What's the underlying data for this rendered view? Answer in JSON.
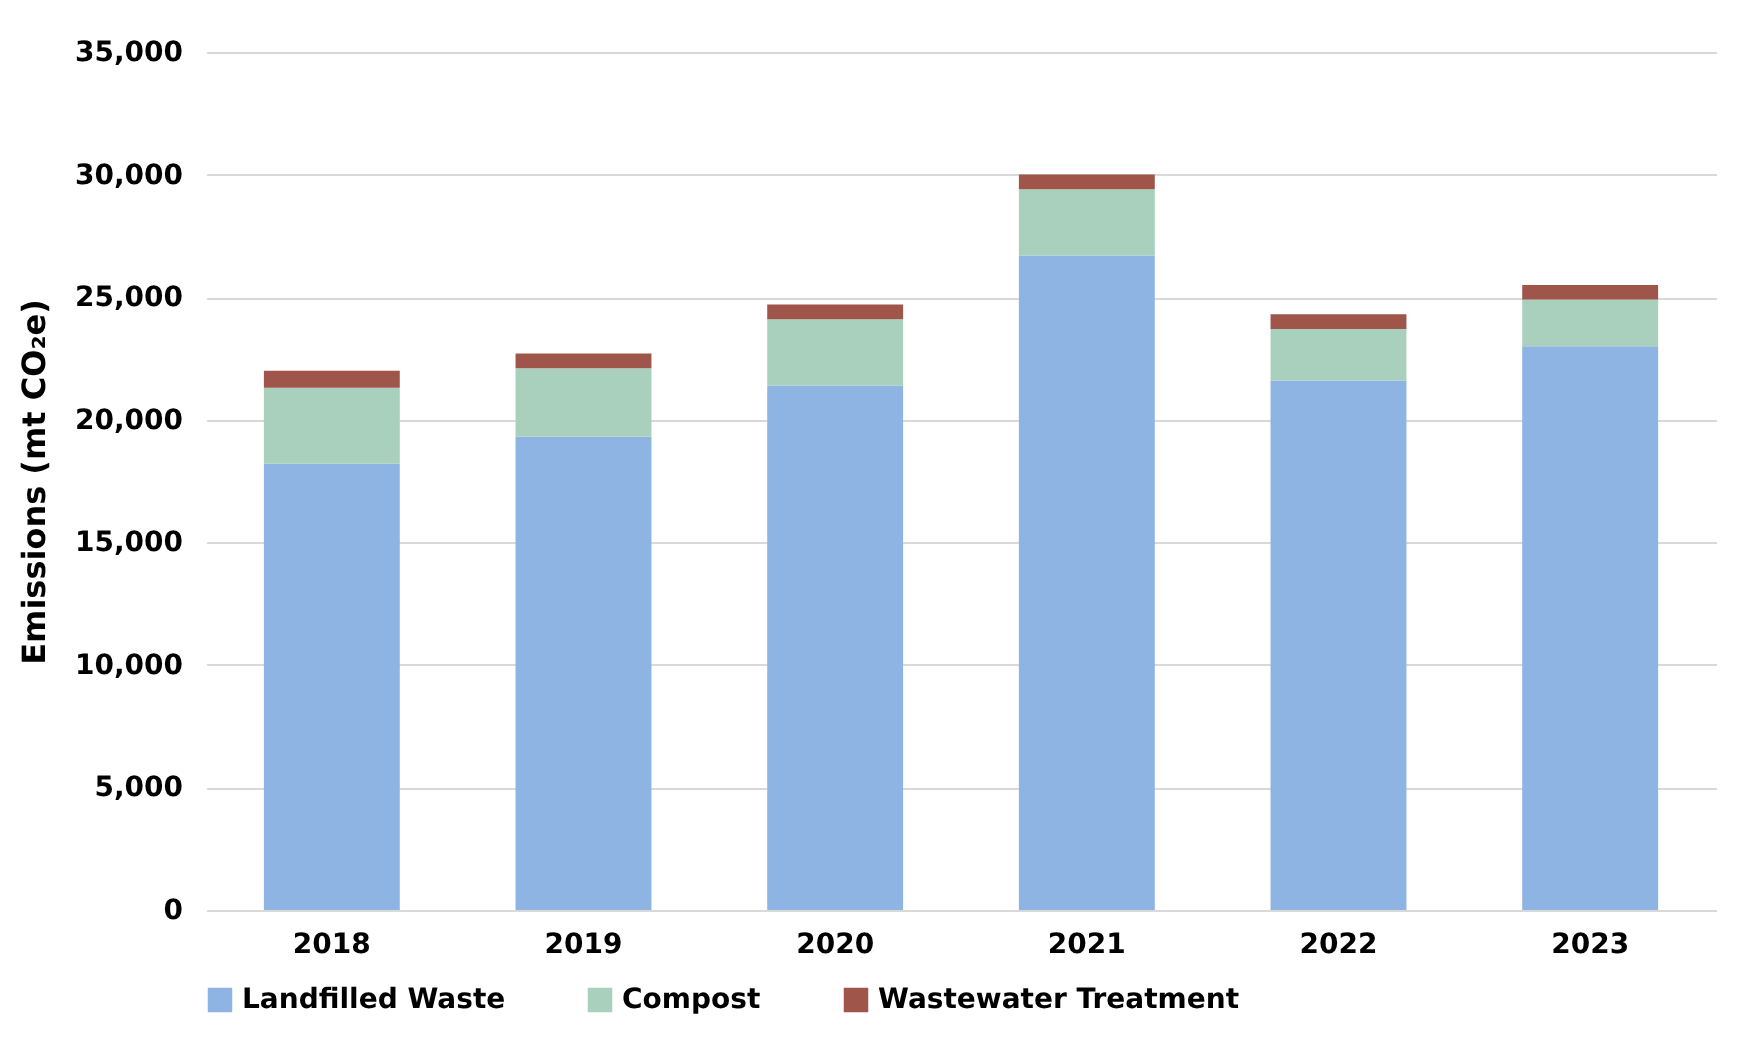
{
  "chart_data": {
    "type": "bar",
    "stacked": true,
    "ylabel": "Emissions (mt CO₂e)",
    "categories": [
      "2018",
      "2019",
      "2020",
      "2021",
      "2022",
      "2023"
    ],
    "series": [
      {
        "name": "Landfilled Waste",
        "color": "#8eb4e3",
        "values": [
          18200,
          19300,
          21400,
          26700,
          21600,
          23000
        ]
      },
      {
        "name": "Compost",
        "color": "#a9d0bd",
        "values": [
          3100,
          2800,
          2700,
          2700,
          2100,
          1900
        ]
      },
      {
        "name": "Wastewater Treatment",
        "color": "#a0554a",
        "values": [
          700,
          600,
          600,
          600,
          600,
          600
        ]
      }
    ],
    "ylim": [
      0,
      35000
    ],
    "yticks": [
      0,
      {
        "value": 5000,
        "label": "5,000"
      },
      {
        "value": 10000,
        "label": "10,000"
      },
      {
        "value": 15000,
        "label": "15,000"
      },
      {
        "value": 20000,
        "label": "20,000"
      },
      {
        "value": 25000,
        "label": "25,000"
      },
      {
        "value": 30000,
        "label": "30,000"
      },
      {
        "value": 35000,
        "label": "35,000"
      }
    ],
    "grid": "y",
    "legend": "bottom"
  }
}
